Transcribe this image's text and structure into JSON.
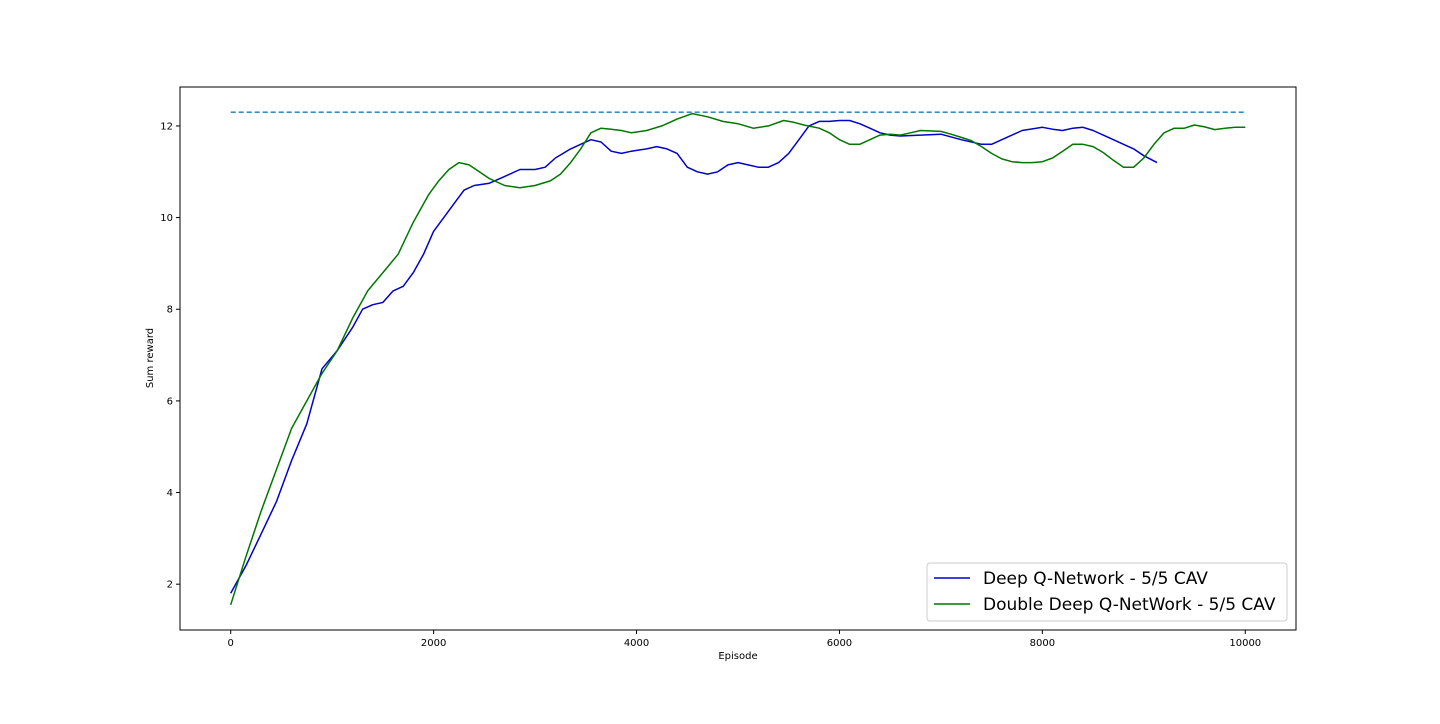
{
  "chart_data": {
    "type": "line",
    "title": "",
    "xlabel": "Episode",
    "ylabel": "Sum reward",
    "xlim": [
      -500,
      10500
    ],
    "ylim": [
      1.0,
      12.85
    ],
    "xticks": [
      0,
      2000,
      4000,
      6000,
      8000,
      10000
    ],
    "yticks": [
      2,
      4,
      6,
      8,
      10,
      12
    ],
    "grid": false,
    "legend_position": "lower-right",
    "reference_line": {
      "y": 12.3,
      "x_range": [
        0,
        10000
      ],
      "style": "dashed",
      "color": "#1f77b4"
    },
    "series": [
      {
        "name": "Deep Q-Network - 5/5 CAV",
        "color": "#0000cc",
        "points": [
          [
            0,
            1.8
          ],
          [
            150,
            2.4
          ],
          [
            300,
            3.1
          ],
          [
            450,
            3.8
          ],
          [
            600,
            4.7
          ],
          [
            750,
            5.5
          ],
          [
            900,
            6.7
          ],
          [
            1050,
            7.1
          ],
          [
            1200,
            7.6
          ],
          [
            1300,
            8.0
          ],
          [
            1400,
            8.1
          ],
          [
            1500,
            8.15
          ],
          [
            1600,
            8.4
          ],
          [
            1700,
            8.5
          ],
          [
            1800,
            8.8
          ],
          [
            1900,
            9.2
          ],
          [
            2000,
            9.7
          ],
          [
            2100,
            10.0
          ],
          [
            2200,
            10.3
          ],
          [
            2300,
            10.6
          ],
          [
            2400,
            10.7
          ],
          [
            2550,
            10.75
          ],
          [
            2700,
            10.9
          ],
          [
            2850,
            11.05
          ],
          [
            3000,
            11.05
          ],
          [
            3100,
            11.1
          ],
          [
            3200,
            11.3
          ],
          [
            3350,
            11.5
          ],
          [
            3450,
            11.6
          ],
          [
            3550,
            11.7
          ],
          [
            3650,
            11.65
          ],
          [
            3750,
            11.45
          ],
          [
            3850,
            11.4
          ],
          [
            3950,
            11.45
          ],
          [
            4100,
            11.5
          ],
          [
            4200,
            11.55
          ],
          [
            4300,
            11.5
          ],
          [
            4400,
            11.4
          ],
          [
            4500,
            11.1
          ],
          [
            4600,
            11.0
          ],
          [
            4700,
            10.95
          ],
          [
            4800,
            11.0
          ],
          [
            4900,
            11.15
          ],
          [
            5000,
            11.2
          ],
          [
            5100,
            11.15
          ],
          [
            5200,
            11.1
          ],
          [
            5300,
            11.1
          ],
          [
            5400,
            11.2
          ],
          [
            5500,
            11.4
          ],
          [
            5600,
            11.7
          ],
          [
            5700,
            12.0
          ],
          [
            5800,
            12.1
          ],
          [
            5900,
            12.1
          ],
          [
            6000,
            12.12
          ],
          [
            6100,
            12.12
          ],
          [
            6200,
            12.05
          ],
          [
            6300,
            11.95
          ],
          [
            6400,
            11.85
          ],
          [
            6500,
            11.8
          ],
          [
            6600,
            11.78
          ],
          [
            6800,
            11.8
          ],
          [
            7000,
            11.82
          ],
          [
            7200,
            11.7
          ],
          [
            7400,
            11.6
          ],
          [
            7500,
            11.6
          ],
          [
            7600,
            11.7
          ],
          [
            7800,
            11.9
          ],
          [
            8000,
            11.97
          ],
          [
            8100,
            11.93
          ],
          [
            8200,
            11.9
          ],
          [
            8300,
            11.95
          ],
          [
            8400,
            11.97
          ],
          [
            8500,
            11.9
          ],
          [
            8600,
            11.8
          ],
          [
            8700,
            11.7
          ],
          [
            8800,
            11.6
          ],
          [
            8900,
            11.5
          ],
          [
            9000,
            11.35
          ],
          [
            9130,
            11.2
          ]
        ]
      },
      {
        "name": "Double Deep Q-NetWork - 5/5 CAV",
        "color": "#007700",
        "points": [
          [
            0,
            1.55
          ],
          [
            150,
            2.6
          ],
          [
            300,
            3.6
          ],
          [
            450,
            4.5
          ],
          [
            600,
            5.4
          ],
          [
            750,
            6.0
          ],
          [
            900,
            6.6
          ],
          [
            1050,
            7.1
          ],
          [
            1200,
            7.8
          ],
          [
            1350,
            8.4
          ],
          [
            1500,
            8.8
          ],
          [
            1650,
            9.2
          ],
          [
            1800,
            9.9
          ],
          [
            1950,
            10.5
          ],
          [
            2050,
            10.8
          ],
          [
            2150,
            11.05
          ],
          [
            2250,
            11.2
          ],
          [
            2350,
            11.15
          ],
          [
            2450,
            11.0
          ],
          [
            2550,
            10.85
          ],
          [
            2700,
            10.7
          ],
          [
            2850,
            10.65
          ],
          [
            3000,
            10.7
          ],
          [
            3150,
            10.8
          ],
          [
            3250,
            10.95
          ],
          [
            3350,
            11.2
          ],
          [
            3450,
            11.5
          ],
          [
            3550,
            11.85
          ],
          [
            3650,
            11.95
          ],
          [
            3750,
            11.93
          ],
          [
            3850,
            11.9
          ],
          [
            3950,
            11.85
          ],
          [
            4100,
            11.9
          ],
          [
            4250,
            12.0
          ],
          [
            4400,
            12.15
          ],
          [
            4550,
            12.27
          ],
          [
            4700,
            12.2
          ],
          [
            4850,
            12.1
          ],
          [
            5000,
            12.05
          ],
          [
            5150,
            11.95
          ],
          [
            5300,
            12.0
          ],
          [
            5450,
            12.12
          ],
          [
            5550,
            12.08
          ],
          [
            5650,
            12.02
          ],
          [
            5800,
            11.95
          ],
          [
            5900,
            11.85
          ],
          [
            6000,
            11.7
          ],
          [
            6100,
            11.6
          ],
          [
            6200,
            11.6
          ],
          [
            6300,
            11.7
          ],
          [
            6400,
            11.8
          ],
          [
            6500,
            11.82
          ],
          [
            6600,
            11.8
          ],
          [
            6700,
            11.85
          ],
          [
            6800,
            11.9
          ],
          [
            7000,
            11.88
          ],
          [
            7100,
            11.82
          ],
          [
            7200,
            11.75
          ],
          [
            7300,
            11.68
          ],
          [
            7400,
            11.55
          ],
          [
            7500,
            11.4
          ],
          [
            7600,
            11.28
          ],
          [
            7700,
            11.22
          ],
          [
            7800,
            11.2
          ],
          [
            7900,
            11.2
          ],
          [
            8000,
            11.22
          ],
          [
            8100,
            11.3
          ],
          [
            8200,
            11.45
          ],
          [
            8300,
            11.6
          ],
          [
            8400,
            11.6
          ],
          [
            8500,
            11.55
          ],
          [
            8600,
            11.42
          ],
          [
            8700,
            11.25
          ],
          [
            8800,
            11.1
          ],
          [
            8900,
            11.1
          ],
          [
            9000,
            11.3
          ],
          [
            9100,
            11.6
          ],
          [
            9200,
            11.85
          ],
          [
            9300,
            11.95
          ],
          [
            9400,
            11.95
          ],
          [
            9500,
            12.02
          ],
          [
            9600,
            11.98
          ],
          [
            9700,
            11.92
          ],
          [
            9800,
            11.95
          ],
          [
            9900,
            11.97
          ],
          [
            10000,
            11.97
          ]
        ]
      }
    ]
  }
}
